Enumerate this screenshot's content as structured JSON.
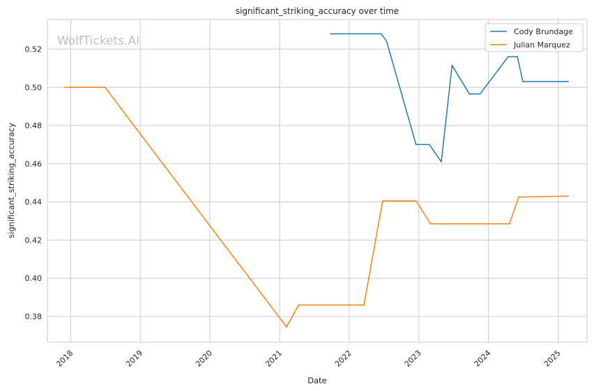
{
  "chart_data": {
    "type": "line",
    "title": "significant_striking_accuracy over time",
    "xlabel": "Date",
    "ylabel": "significant_striking_accuracy",
    "watermark": "WolfTickets.AI",
    "x_ticks": [
      "2018",
      "2019",
      "2020",
      "2021",
      "2022",
      "2023",
      "2024",
      "2025"
    ],
    "y_ticks": [
      "0.38",
      "0.40",
      "0.42",
      "0.44",
      "0.46",
      "0.48",
      "0.50",
      "0.52"
    ],
    "xlim": [
      "2017-09-01",
      "2025-06-01"
    ],
    "ylim": [
      0.3665,
      0.5355
    ],
    "grid": true,
    "legend_position": "top-right",
    "series": [
      {
        "name": "Cody Brundage",
        "color": "#1f77b4",
        "points": [
          [
            "2021-09-25",
            0.528
          ],
          [
            "2022-06-18",
            0.528
          ],
          [
            "2022-07-16",
            0.524
          ],
          [
            "2022-12-17",
            0.47
          ],
          [
            "2023-02-25",
            0.47
          ],
          [
            "2023-04-29",
            0.461
          ],
          [
            "2023-06-24",
            0.5115
          ],
          [
            "2023-09-23",
            0.4965
          ],
          [
            "2023-11-18",
            0.4965
          ],
          [
            "2024-04-13",
            0.516
          ],
          [
            "2024-06-01",
            0.516
          ],
          [
            "2024-06-29",
            0.503
          ],
          [
            "2025-02-22",
            0.503
          ]
        ]
      },
      {
        "name": "Julian Marquez",
        "color": "#ff7f0e",
        "points": [
          [
            "2017-12-02",
            0.5
          ],
          [
            "2018-06-30",
            0.5
          ],
          [
            "2021-02-06",
            0.3745
          ],
          [
            "2021-04-10",
            0.386
          ],
          [
            "2022-03-19",
            0.386
          ],
          [
            "2022-06-25",
            0.4405
          ],
          [
            "2022-12-17",
            0.4405
          ],
          [
            "2023-03-04",
            0.4285
          ],
          [
            "2024-04-20",
            0.4285
          ],
          [
            "2024-06-08",
            0.4425
          ],
          [
            "2025-02-22",
            0.443
          ]
        ]
      }
    ]
  }
}
